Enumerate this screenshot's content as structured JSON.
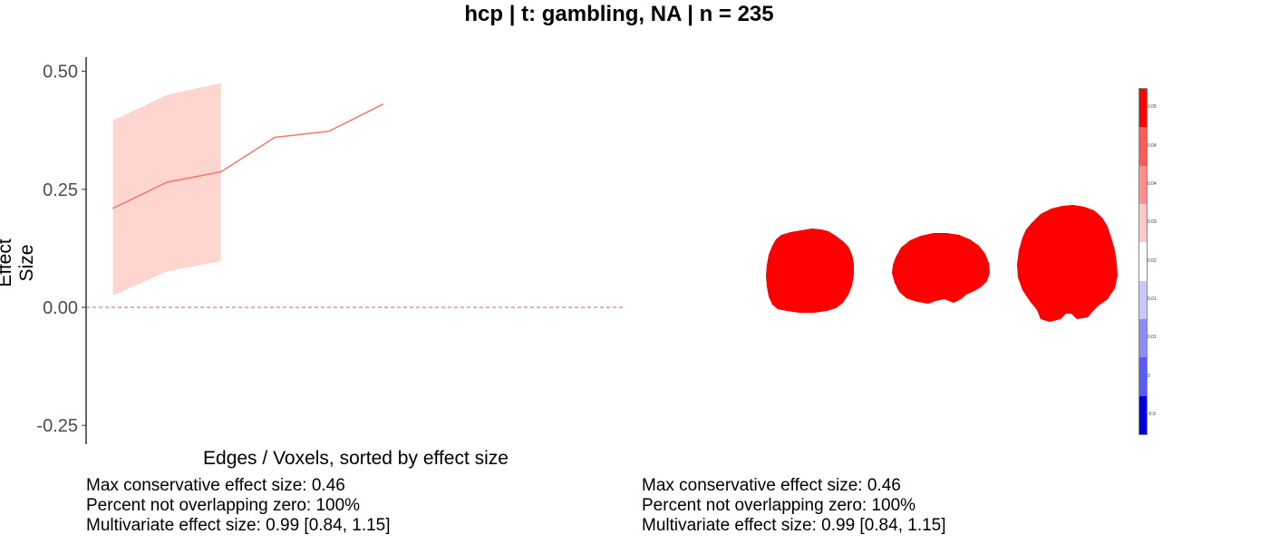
{
  "title": "hcp | t: gambling, NA | n = 235",
  "chart_data": {
    "type": "line",
    "xlabel": "Edges / Voxels, sorted by effect size",
    "ylabel": "Effect Size",
    "ylim": [
      -0.29,
      0.53
    ],
    "xlim": [
      0.5,
      10.5
    ],
    "y_ticks": [
      -0.25,
      0.0,
      0.25,
      0.5
    ],
    "y_tick_labels": [
      "-0.25",
      "0.00",
      "0.25",
      "0.50"
    ],
    "reference_line_y": 0.0,
    "grid": false,
    "series": [
      {
        "x": [
          1,
          2,
          3,
          4,
          5,
          6
        ],
        "values": [
          0.21,
          0.265,
          0.287,
          0.36,
          0.373,
          0.43
        ],
        "ci_lower": [
          0.025,
          0.076,
          0.098,
          null,
          null,
          null
        ],
        "ci_upper": [
          0.396,
          0.45,
          0.475,
          null,
          null,
          null
        ],
        "color": "#F8766D",
        "ribbon_color": "#FFD5D0"
      }
    ]
  },
  "colorbar": {
    "colors": [
      "#FF0000",
      "#FF5A5A",
      "#FF8C8C",
      "#FFC8C8",
      "#FFFFFF",
      "#C8C8FF",
      "#8C8CFF",
      "#5A5AFF",
      "#0000E6"
    ],
    "tick_labels": [
      "0.05",
      "0.04",
      "0.04",
      "0.03",
      "0.02",
      "0.01",
      "0.01",
      "0",
      "-0.0"
    ]
  },
  "brain": {
    "fill_color": "#FF0000",
    "views": [
      "axial",
      "sagittal",
      "coronal"
    ]
  },
  "stats_left": {
    "max_conservative": "Max conservative effect size: 0.46",
    "percent_not_overlapping": "Percent not overlapping zero: 100%",
    "multivariate": "Multivariate effect size: 0.99 [0.84, 1.15]"
  },
  "stats_right": {
    "max_conservative": "Max conservative effect size: 0.46",
    "percent_not_overlapping": "Percent not overlapping zero: 100%",
    "multivariate": "Multivariate effect size: 0.99 [0.84, 1.15]"
  }
}
